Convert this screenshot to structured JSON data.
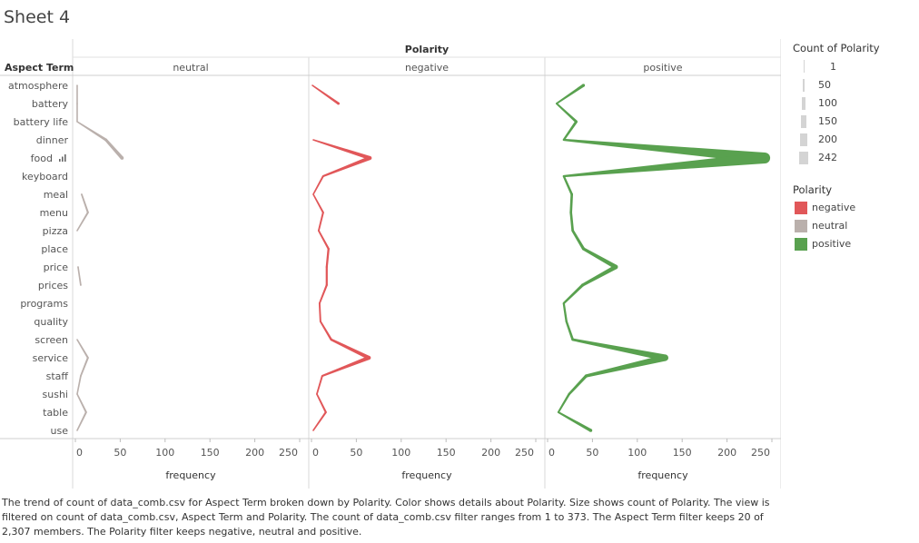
{
  "sheet_title": "Sheet 4",
  "chart_data": {
    "type": "line",
    "title": "",
    "column_header": "Polarity",
    "row_header": "Aspect Term",
    "xlabel": "frequency",
    "xlim": [
      0,
      250
    ],
    "xticks": [
      0,
      50,
      100,
      150,
      200,
      250
    ],
    "categories": [
      "atmosphere",
      "battery",
      "battery life",
      "dinner",
      "food",
      "keyboard",
      "meal",
      "menu",
      "pizza",
      "place",
      "price",
      "prices",
      "programs",
      "quality",
      "screen",
      "service",
      "staff",
      "sushi",
      "table",
      "use"
    ],
    "series": [
      {
        "name": "neutral",
        "color": "#bab0ac",
        "values": [
          2,
          2,
          2,
          34,
          52,
          null,
          7,
          14,
          2,
          null,
          3,
          6,
          null,
          null,
          2,
          14,
          6,
          2,
          12,
          2
        ]
      },
      {
        "name": "negative",
        "color": "#e15759",
        "values": [
          1,
          30,
          null,
          2,
          65,
          13,
          2,
          13,
          8,
          19,
          17,
          17,
          9,
          10,
          22,
          64,
          12,
          6,
          16,
          2
        ]
      },
      {
        "name": "positive",
        "color": "#59a14f",
        "values": [
          40,
          10,
          32,
          18,
          242,
          18,
          27,
          26,
          28,
          40,
          76,
          39,
          18,
          21,
          28,
          131,
          43,
          24,
          12,
          48
        ]
      }
    ],
    "size_legend": {
      "title": "Count of Polarity",
      "values": [
        1,
        50,
        100,
        150,
        200,
        242
      ]
    },
    "color_legend": {
      "title": "Polarity",
      "items": [
        {
          "name": "negative",
          "color": "#e15759"
        },
        {
          "name": "neutral",
          "color": "#bab0ac"
        },
        {
          "name": "positive",
          "color": "#59a14f"
        }
      ]
    },
    "caption": "The trend of count of data_comb.csv for Aspect Term broken down by Polarity.  Color shows details about Polarity.  Size shows count of Polarity. The view is filtered on count of data_comb.csv, Aspect Term and Polarity. The count of data_comb.csv filter ranges from 1 to 373. The Aspect Term filter keeps 20 of 2,307 members. The Polarity filter keeps negative, neutral and positive."
  }
}
